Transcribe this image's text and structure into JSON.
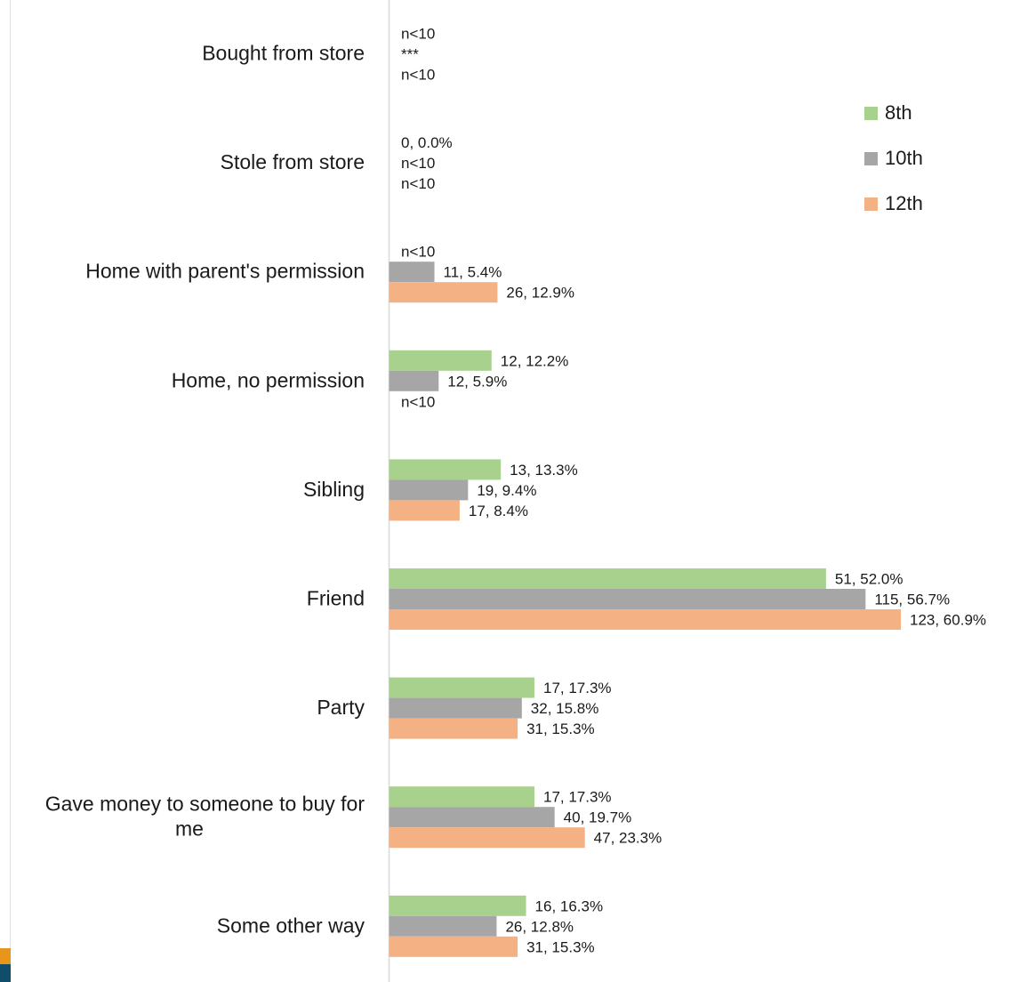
{
  "chart_data": {
    "type": "bar",
    "orientation": "horizontal",
    "grid": false,
    "legend_position": "right",
    "categories": [
      "Bought from store",
      "Stole from store",
      "Home with parent's permission",
      "Home, no permission",
      "Sibling",
      "Friend",
      "Party",
      "Gave money to someone to buy for me",
      "Some other way"
    ],
    "category_lines": [
      [
        "Bought from store"
      ],
      [
        "Stole from store"
      ],
      [
        "Home with parent's permission"
      ],
      [
        "Home, no permission"
      ],
      [
        "Sibling"
      ],
      [
        "Friend"
      ],
      [
        "Party"
      ],
      [
        "Gave money to someone to buy for",
        "me"
      ],
      [
        "Some other way"
      ]
    ],
    "series": [
      {
        "name": "8th",
        "color": "#a9d18e",
        "values": [
          null,
          0,
          null,
          12.2,
          13.3,
          52.0,
          17.3,
          17.3,
          16.3
        ],
        "labels": [
          "n<10",
          "0, 0.0%",
          "n<10",
          "12, 12.2%",
          "13, 13.3%",
          "51, 52.0%",
          "17, 17.3%",
          "17, 17.3%",
          "16, 16.3%"
        ]
      },
      {
        "name": "10th",
        "color": "#a6a6a6",
        "values": [
          null,
          null,
          5.4,
          5.9,
          9.4,
          56.7,
          15.8,
          19.7,
          12.8
        ],
        "labels": [
          "***",
          "n<10",
          "11, 5.4%",
          "12, 5.9%",
          "19, 9.4%",
          "115, 56.7%",
          "32, 15.8%",
          "40, 19.7%",
          "26, 12.8%"
        ]
      },
      {
        "name": "12th",
        "color": "#f4b183",
        "values": [
          null,
          null,
          12.9,
          null,
          8.4,
          60.9,
          15.3,
          23.3,
          15.3
        ],
        "labels": [
          "n<10",
          "n<10",
          "26, 12.9%",
          "n<10",
          "17, 8.4%",
          "123, 60.9%",
          "31, 15.3%",
          "47, 23.3%",
          "31, 15.3%"
        ]
      }
    ],
    "xlim": [
      0,
      60.9
    ]
  },
  "decoration": {
    "accent_colors": [
      "#e8951c",
      "#0f4d6b"
    ]
  }
}
